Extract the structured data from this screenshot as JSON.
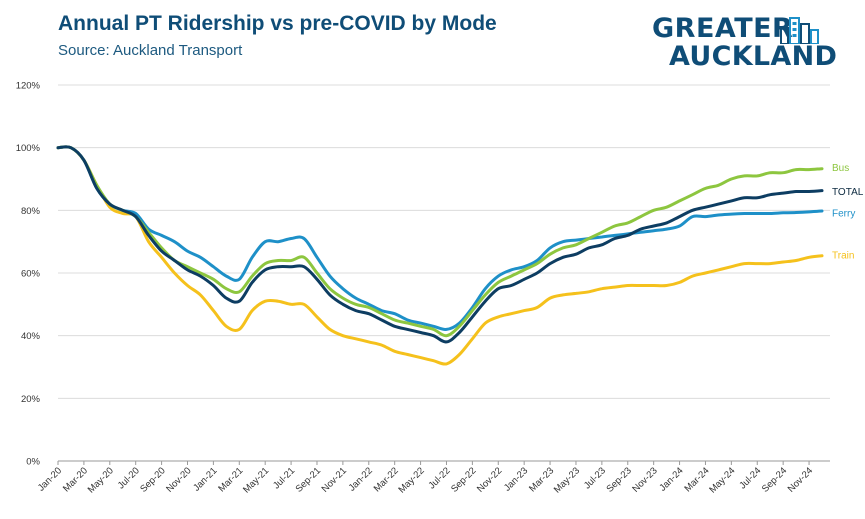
{
  "header": {
    "title": "Annual PT Ridership vs pre-COVID by Mode",
    "subtitle": "Source: Auckland Transport"
  },
  "logo": {
    "line1": "GREATER",
    "line2": "AUCKLAND",
    "icon": "building-icon",
    "color": "#0f4d77"
  },
  "chart_data": {
    "type": "line",
    "title": "Annual PT Ridership vs pre-COVID by Mode",
    "xlabel": "",
    "ylabel": "",
    "ylim": [
      0,
      120
    ],
    "yticks": [
      0,
      20,
      40,
      60,
      80,
      100,
      120
    ],
    "ytick_labels": [
      "0%",
      "20%",
      "40%",
      "60%",
      "80%",
      "100%",
      "120%"
    ],
    "grid": "horizontal",
    "legend": "labels at line ends (right)",
    "x": [
      "Jan-20",
      "Feb-20",
      "Mar-20",
      "Apr-20",
      "May-20",
      "Jun-20",
      "Jul-20",
      "Aug-20",
      "Sep-20",
      "Oct-20",
      "Nov-20",
      "Dec-20",
      "Jan-21",
      "Feb-21",
      "Mar-21",
      "Apr-21",
      "May-21",
      "Jun-21",
      "Jul-21",
      "Aug-21",
      "Sep-21",
      "Oct-21",
      "Nov-21",
      "Dec-21",
      "Jan-22",
      "Feb-22",
      "Mar-22",
      "Apr-22",
      "May-22",
      "Jun-22",
      "Jul-22",
      "Aug-22",
      "Sep-22",
      "Oct-22",
      "Nov-22",
      "Dec-22",
      "Jan-23",
      "Feb-23",
      "Mar-23",
      "Apr-23",
      "May-23",
      "Jun-23",
      "Jul-23",
      "Aug-23",
      "Sep-23",
      "Oct-23",
      "Nov-23",
      "Dec-23",
      "Jan-24",
      "Feb-24",
      "Mar-24",
      "Apr-24",
      "May-24",
      "Jun-24",
      "Jul-24",
      "Aug-24",
      "Sep-24",
      "Oct-24",
      "Nov-24",
      "Dec-24"
    ],
    "x_tick_labels": [
      "Jan-20",
      "Mar-20",
      "May-20",
      "Jul-20",
      "Sep-20",
      "Nov-20",
      "Jan-21",
      "Mar-21",
      "May-21",
      "Jul-21",
      "Sep-21",
      "Nov-21",
      "Jan-22",
      "Mar-22",
      "May-22",
      "Jul-22",
      "Sep-22",
      "Nov-22",
      "Jan-23",
      "Mar-23",
      "May-23",
      "Jul-23",
      "Sep-23",
      "Nov-23",
      "Jan-24",
      "Mar-24",
      "May-24",
      "Jul-24",
      "Sep-24",
      "Nov-24"
    ],
    "series": [
      {
        "name": "Bus",
        "color": "#8dc63f",
        "values": [
          100,
          100,
          96,
          88,
          82,
          80,
          78,
          73,
          68,
          64,
          62,
          60,
          58,
          55,
          54,
          59,
          63,
          64,
          64,
          65,
          60,
          55,
          52,
          50,
          49,
          47,
          45,
          44,
          43,
          42,
          40,
          43,
          48,
          53,
          57,
          59,
          61,
          63,
          66,
          68,
          69,
          71,
          73,
          75,
          76,
          78,
          80,
          81,
          83,
          85,
          87,
          88,
          90,
          91,
          91,
          92,
          92,
          93,
          93,
          93.3
        ]
      },
      {
        "name": "TOTAL",
        "color": "#0d3d62",
        "values": [
          100,
          100,
          96,
          87,
          82,
          80,
          78,
          72,
          67,
          64,
          61,
          59,
          56,
          52,
          51,
          57,
          61,
          62,
          62,
          62,
          58,
          53,
          50,
          48,
          47,
          45,
          43,
          42,
          41,
          40,
          38,
          41,
          46,
          51,
          55,
          56,
          58,
          60,
          63,
          65,
          66,
          68,
          69,
          71,
          72,
          74,
          75,
          76,
          78,
          80,
          81,
          82,
          83,
          84,
          84,
          85,
          85.5,
          86,
          86,
          86.3
        ]
      },
      {
        "name": "Ferry",
        "color": "#1e90c8",
        "values": [
          100,
          100,
          96,
          87,
          82,
          80,
          79,
          74,
          72,
          70,
          67,
          65,
          62,
          59,
          58,
          65,
          70,
          70,
          71,
          71,
          65,
          59,
          55,
          52,
          50,
          48,
          47,
          45,
          44,
          43,
          42,
          44,
          49,
          55,
          59,
          61,
          62,
          64,
          68,
          70,
          70.5,
          71,
          71.5,
          72,
          72.5,
          73,
          73.5,
          74,
          75,
          78,
          78,
          78.5,
          78.8,
          79,
          79,
          79,
          79.2,
          79.3,
          79.5,
          79.8
        ]
      },
      {
        "name": "Train",
        "color": "#f5c11c",
        "values": [
          100,
          100,
          96,
          88,
          81,
          79,
          78,
          70,
          65,
          60,
          56,
          53,
          48,
          43,
          42,
          48,
          51,
          51,
          50,
          50,
          46,
          42,
          40,
          39,
          38,
          37,
          35,
          34,
          33,
          32,
          31,
          34,
          39,
          44,
          46,
          47,
          48,
          49,
          52,
          53,
          53.5,
          54,
          55,
          55.5,
          56,
          56,
          56,
          56,
          57,
          59,
          60,
          61,
          62,
          63,
          63,
          63,
          63.5,
          64,
          65,
          65.5
        ]
      }
    ]
  }
}
